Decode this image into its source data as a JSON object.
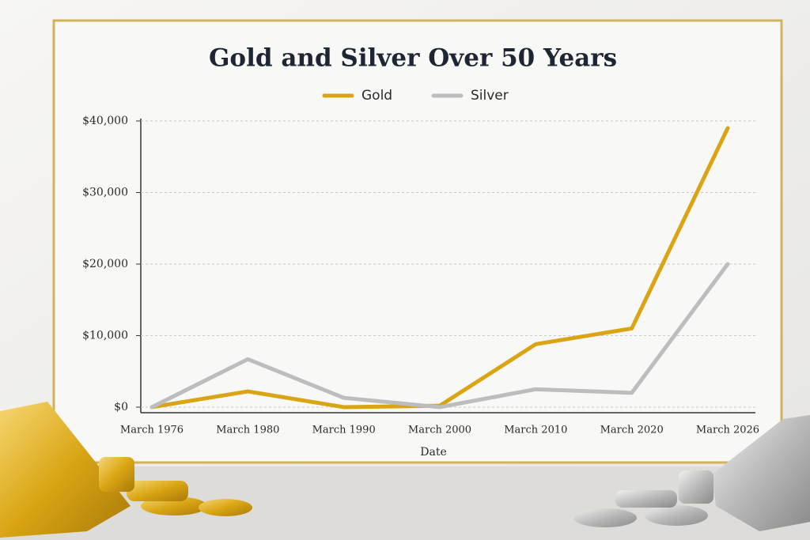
{
  "chart_data": {
    "type": "line",
    "title": "Gold and Silver Over 50 Years",
    "x_label": "Date",
    "categories": [
      "March 1976",
      "March 1980",
      "March 1990",
      "March 2000",
      "March 2010",
      "March 2020",
      "March 2026"
    ],
    "series": [
      {
        "name": "Gold",
        "color": "#d9a514",
        "values": [
          0,
          2200,
          0,
          200,
          8800,
          11000,
          39000
        ]
      },
      {
        "name": "Silver",
        "color": "#bdbdbd",
        "values": [
          0,
          6700,
          1300,
          0,
          2500,
          2000,
          20000
        ]
      }
    ],
    "ylim": [
      -1000,
      40000
    ],
    "yticks": [
      {
        "value": 0,
        "label": "$0"
      },
      {
        "value": 10000,
        "label": "$10,000"
      },
      {
        "value": 20000,
        "label": "$20,000"
      },
      {
        "value": 30000,
        "label": "$30,000"
      },
      {
        "value": 40000,
        "label": "$40,000"
      }
    ],
    "grid": true
  }
}
